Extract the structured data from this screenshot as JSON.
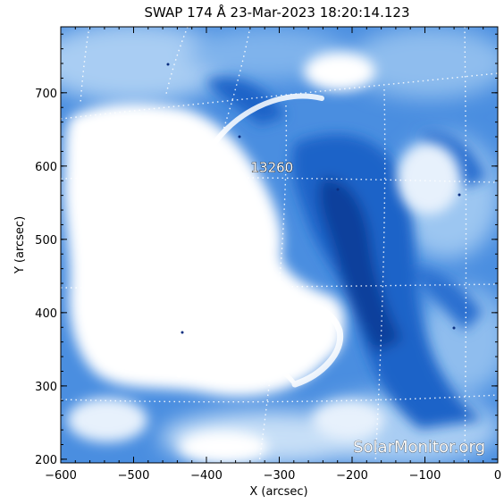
{
  "title": "SWAP 174 Å 23-Mar-2023 18:20:14.123",
  "xlabel": "X (arcsec)",
  "ylabel": "Y (arcsec)",
  "xlim": [
    -600,
    0
  ],
  "ylim": [
    195,
    790
  ],
  "xticks": [
    {
      "value": -600,
      "label": "−600"
    },
    {
      "value": -500,
      "label": "−500"
    },
    {
      "value": -400,
      "label": "−400"
    },
    {
      "value": -300,
      "label": "−300"
    },
    {
      "value": -200,
      "label": "−200"
    },
    {
      "value": -100,
      "label": "−100"
    },
    {
      "value": 0,
      "label": "0"
    }
  ],
  "yticks": [
    {
      "value": 200,
      "label": "200"
    },
    {
      "value": 300,
      "label": "300"
    },
    {
      "value": 400,
      "label": "400"
    },
    {
      "value": 500,
      "label": "500"
    },
    {
      "value": 600,
      "label": "600"
    },
    {
      "value": 700,
      "label": "700"
    }
  ],
  "region": {
    "label": "13260",
    "x": -310,
    "y": 592
  },
  "watermark": "SolarMonitor.org",
  "colors": {
    "white": "#ffffff",
    "light": "#a9cdf3",
    "mid": "#4a8ee0",
    "deep": "#1f63c8",
    "darkest": "#0d3f9c",
    "axis": "#000000"
  }
}
